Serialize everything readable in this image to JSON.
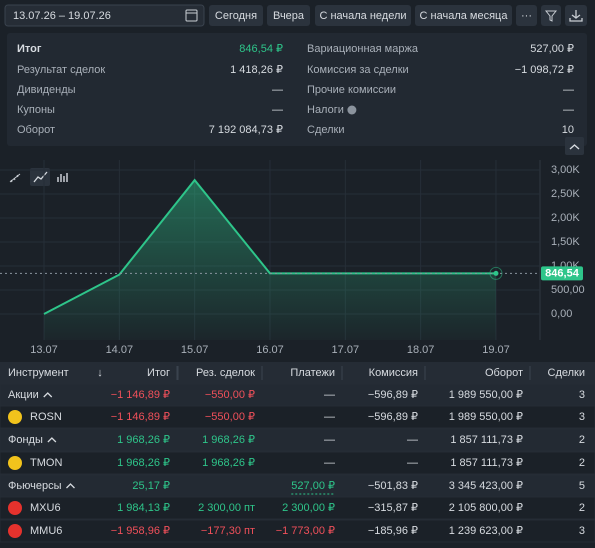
{
  "toolbar": {
    "date_range": "13.07.26 – 19.07.26",
    "buttons": [
      "Сегодня",
      "Вчера",
      "С начала недели",
      "С начала месяца",
      "···"
    ]
  },
  "summary": {
    "left": [
      {
        "label": "Итог",
        "value": "846,54 ₽"
      },
      {
        "label": "Результат сделок",
        "value": "1 418,26 ₽"
      },
      {
        "label": "Дивиденды",
        "value": "—"
      },
      {
        "label": "Купоны",
        "value": "—"
      },
      {
        "label": "Оборот",
        "value": "7 192 084,73 ₽"
      }
    ],
    "right": [
      {
        "label": "Вариационная маржа",
        "value": "527,00 ₽"
      },
      {
        "label": "Комиссия за сделки",
        "value": "−1 098,72 ₽"
      },
      {
        "label": "Прочие комиссии",
        "value": "—"
      },
      {
        "label": "Налоги",
        "value": "—"
      },
      {
        "label": "Сделки",
        "value": "10"
      }
    ]
  },
  "chart_data": {
    "type": "line",
    "categories": [
      "13.07",
      "14.07",
      "15.07",
      "16.07",
      "17.07",
      "18.07",
      "19.07"
    ],
    "series": [
      {
        "color": "#2ec58a",
        "values": [
          0,
          820,
          2790,
          846.54,
          846.54,
          846.54,
          846.54
        ]
      }
    ],
    "ylim": [
      -500,
      3250
    ],
    "yticks": [
      {
        "value": 0,
        "label": "0,00"
      },
      {
        "value": 500,
        "label": "500,00"
      },
      {
        "value": 1000,
        "label": "1,00K"
      },
      {
        "value": 1500,
        "label": "1,50K"
      },
      {
        "value": 2000,
        "label": "2,00K"
      },
      {
        "value": 2500,
        "label": "2,50K"
      },
      {
        "value": 3000,
        "label": "3,00K"
      }
    ],
    "current_value": {
      "value": 846.54,
      "label": "846,54"
    },
    "grid": true
  },
  "table": {
    "columns": [
      "Инструмент",
      "Итог",
      "Рез. сделок",
      "Платежи",
      "Комиссия",
      "Оборот",
      "Сделки"
    ],
    "sort_indicator": "↓",
    "rows": [
      {
        "group": true,
        "cells": [
          "Акции",
          "−1 146,89 ₽",
          "−550,00 ₽",
          "—",
          "−596,89 ₽",
          "1 989 550,00 ₽",
          "3"
        ]
      },
      {
        "icon_color": "#f2c31c",
        "cells": [
          "ROSN",
          "−1 146,89 ₽",
          "−550,00 ₽",
          "—",
          "−596,89 ₽",
          "1 989 550,00 ₽",
          "3"
        ]
      },
      {
        "group": true,
        "cells": [
          "Фонды",
          "1 968,26 ₽",
          "1 968,26 ₽",
          "—",
          "—",
          "1 857 111,73 ₽",
          "2"
        ]
      },
      {
        "icon_color": "#f2c31c",
        "cells": [
          "TMON",
          "1 968,26 ₽",
          "1 968,26 ₽",
          "—",
          "—",
          "1 857 111,73 ₽",
          "2"
        ]
      },
      {
        "group": true,
        "cells": [
          "Фьючерсы",
          "25,17 ₽",
          null,
          "527,00 ₽",
          "−501,83 ₽",
          "3 345 423,00 ₽",
          "5"
        ]
      },
      {
        "icon_color": "#e5322d",
        "cells": [
          "MXU6",
          "1 984,13 ₽",
          "2 300,00 пт",
          "2 300,00 ₽",
          "−315,87 ₽",
          "2 105 800,00 ₽",
          "2"
        ]
      },
      {
        "icon_color": "#e5322d",
        "cells": [
          "MMU6",
          "−1 958,96 ₽",
          "−177,30 пт",
          "−1 773,00 ₽",
          "−185,96 ₽",
          "1 239 623,00 ₽",
          "3"
        ]
      }
    ]
  }
}
